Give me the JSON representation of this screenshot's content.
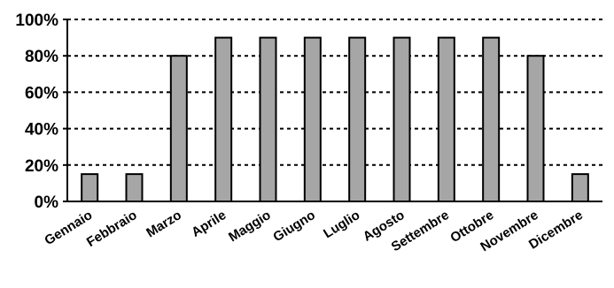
{
  "chart_data": {
    "type": "bar",
    "title": "",
    "xlabel": "",
    "ylabel": "",
    "categories": [
      "Gennaio",
      "Febbraio",
      "Marzo",
      "Aprile",
      "Maggio",
      "Giugno",
      "Luglio",
      "Agosto",
      "Settembre",
      "Ottobre",
      "Novembre",
      "Dicembre"
    ],
    "values": [
      15,
      15,
      80,
      90,
      90,
      90,
      90,
      90,
      90,
      90,
      80,
      15
    ],
    "ylim": [
      0,
      100
    ],
    "yticks": [
      "0%",
      "20%",
      "40%",
      "60%",
      "80%",
      "100%"
    ],
    "grid": "dashed horizontal",
    "legend": "none",
    "colors": {
      "bar_fill": "#a6a6a6",
      "bar_stroke": "#000000",
      "grid": "#000000",
      "axis": "#000000"
    }
  }
}
